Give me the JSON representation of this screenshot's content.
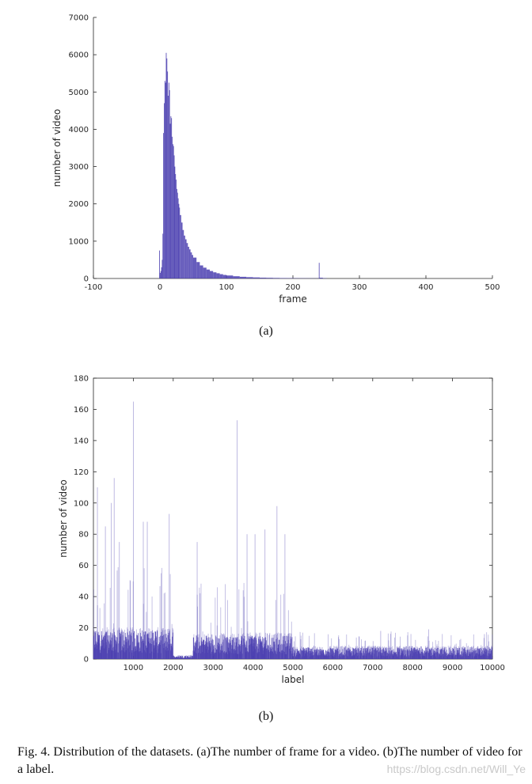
{
  "chart_data": [
    {
      "type": "bar",
      "id": "a",
      "subcaption": "(a)",
      "xlabel": "frame",
      "ylabel": "number of video",
      "xlim": [
        -100,
        500
      ],
      "ylim": [
        0,
        7000
      ],
      "xticks": [
        -100,
        0,
        100,
        200,
        300,
        400,
        500
      ],
      "yticks": [
        0,
        1000,
        2000,
        3000,
        4000,
        5000,
        6000,
        7000
      ],
      "grid": false,
      "color": "#4b3fb0",
      "x": [
        -1,
        0,
        1,
        2,
        3,
        4,
        5,
        6,
        7,
        8,
        9,
        10,
        11,
        12,
        13,
        14,
        15,
        16,
        17,
        18,
        19,
        20,
        21,
        22,
        23,
        24,
        25,
        26,
        27,
        28,
        29,
        30,
        32,
        34,
        36,
        38,
        40,
        42,
        44,
        46,
        48,
        50,
        55,
        60,
        65,
        70,
        75,
        80,
        85,
        90,
        95,
        100,
        110,
        120,
        130,
        140,
        150,
        160,
        170,
        180,
        190,
        200,
        210,
        220,
        230,
        239,
        240,
        245,
        250
      ],
      "values": [
        750,
        150,
        200,
        300,
        500,
        1200,
        3900,
        4700,
        5300,
        5250,
        6050,
        5900,
        5550,
        4900,
        5250,
        5050,
        4150,
        4350,
        4300,
        3800,
        3600,
        3550,
        3300,
        3000,
        2800,
        2650,
        2400,
        2300,
        2150,
        2000,
        1900,
        1700,
        1500,
        1300,
        1150,
        1050,
        950,
        850,
        780,
        700,
        630,
        560,
        440,
        350,
        290,
        240,
        200,
        165,
        140,
        115,
        95,
        80,
        60,
        45,
        35,
        28,
        22,
        18,
        14,
        11,
        9,
        7,
        6,
        5,
        4,
        420,
        20,
        8,
        5
      ]
    },
    {
      "type": "bar",
      "id": "b",
      "subcaption": "(b)",
      "xlabel": "label",
      "ylabel": "number of video",
      "xlim": [
        0,
        10000
      ],
      "ylim": [
        0,
        180
      ],
      "xticks": [
        1000,
        2000,
        3000,
        4000,
        5000,
        6000,
        7000,
        8000,
        9000,
        10000
      ],
      "yticks": [
        0,
        20,
        40,
        60,
        80,
        100,
        120,
        140,
        160,
        180
      ],
      "grid": false,
      "color": "#4b3fb0",
      "segments": [
        {
          "range": [
            0,
            2000
          ],
          "typical": 12,
          "max": 60
        },
        {
          "range": [
            2000,
            2500
          ],
          "typical": 1.5,
          "max": 3
        },
        {
          "range": [
            2500,
            5000
          ],
          "typical": 10,
          "max": 50
        },
        {
          "range": [
            5000,
            10000
          ],
          "typical": 5,
          "max": 18
        }
      ],
      "peaks": [
        [
          100,
          110
        ],
        [
          300,
          85
        ],
        [
          450,
          100
        ],
        [
          520,
          116
        ],
        [
          650,
          75
        ],
        [
          1000,
          165
        ],
        [
          1250,
          88
        ],
        [
          1350,
          88
        ],
        [
          1900,
          93
        ],
        [
          2600,
          75
        ],
        [
          3600,
          153
        ],
        [
          3850,
          80
        ],
        [
          4050,
          80
        ],
        [
          4300,
          83
        ],
        [
          4600,
          98
        ],
        [
          4800,
          80
        ],
        [
          7200,
          18
        ],
        [
          8400,
          19
        ],
        [
          9800,
          16
        ]
      ]
    }
  ],
  "caption": "Fig. 4.    Distribution of the datasets. (a)The number of frame for a video. (b)The number of video for a label.",
  "watermark": "https://blog.csdn.net/Will_Ye"
}
